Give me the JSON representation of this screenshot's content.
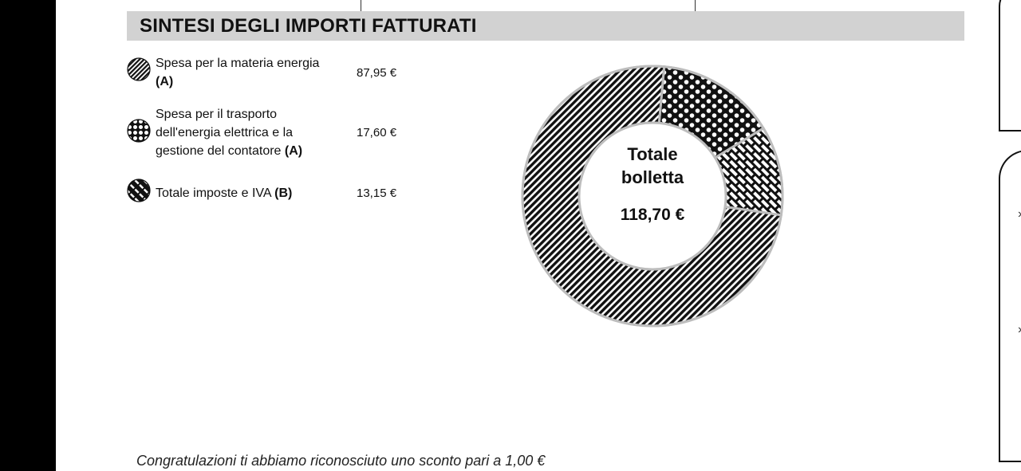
{
  "section": {
    "title": "SINTESI DEGLI IMPORTI FATTURATI"
  },
  "legend": [
    {
      "label": "Spesa per la materia energia",
      "tag": "(A)",
      "value": "87,95 €",
      "icon": "diagonal-hatch-icon"
    },
    {
      "label": "Spesa per il trasporto dell'energia elettrica e la gestione del contatore",
      "tag": "(A)",
      "value": "17,60 €",
      "icon": "hexagon-pattern-icon"
    },
    {
      "label": "Totale imposte e IVA",
      "tag": "(B)",
      "value": "13,15 €",
      "icon": "brick-pattern-icon"
    }
  ],
  "chart_data": {
    "type": "pie",
    "donut": true,
    "categories": [
      "Spesa per la materia energia (A)",
      "Spesa per il trasporto dell'energia elettrica e la gestione del contatore (A)",
      "Totale imposte e IVA (B)"
    ],
    "values": [
      87.95,
      17.6,
      13.15
    ],
    "center_label": "Totale bolletta",
    "center_value": "118,70 €",
    "colors": [
      "#111111",
      "#111111",
      "#111111"
    ]
  },
  "footer": {
    "note": "Congratulazioni ti abbiamo riconosciuto uno sconto pari a 1,00 €"
  }
}
